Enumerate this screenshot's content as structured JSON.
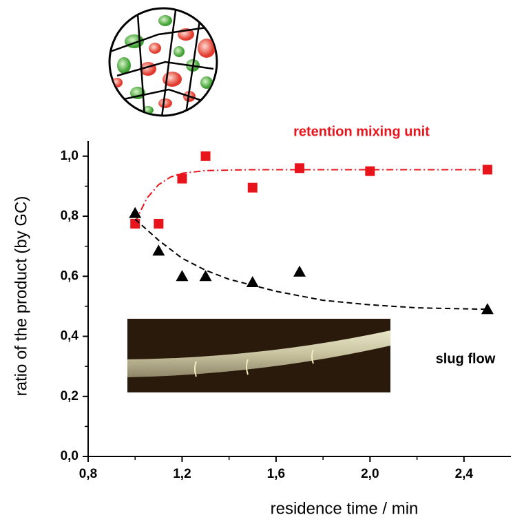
{
  "chart_data": {
    "type": "scatter",
    "x_label": "residence time / min",
    "y_label": "ratio of the product (by GC)",
    "xlim": [
      0.8,
      2.6
    ],
    "ylim": [
      0,
      1.05
    ],
    "xticks": [
      {
        "value": 0.8,
        "label": "0,8"
      },
      {
        "value": 1.2,
        "label": "1,2"
      },
      {
        "value": 1.6,
        "label": "1,6"
      },
      {
        "value": 2.0,
        "label": "2,0"
      },
      {
        "value": 2.4,
        "label": "2,4"
      }
    ],
    "yticks": [
      {
        "value": 0,
        "label": "0,0"
      },
      {
        "value": 0.2,
        "label": "0,2"
      },
      {
        "value": 0.4,
        "label": "0,4"
      },
      {
        "value": 0.6,
        "label": "0,6"
      },
      {
        "value": 0.8,
        "label": "0,8"
      },
      {
        "value": 1.0,
        "label": "1,0"
      }
    ],
    "series": [
      {
        "name": "retention mixing unit",
        "color": "#e8141c",
        "marker": "square",
        "x": [
          1.0,
          1.1,
          1.2,
          1.3,
          1.5,
          1.7,
          2.0,
          2.5
        ],
        "values": [
          0.775,
          0.775,
          0.925,
          1.0,
          0.895,
          0.96,
          0.95,
          0.955
        ],
        "fit": {
          "x": [
            1.0,
            1.05,
            1.1,
            1.15,
            1.2,
            1.3,
            1.5,
            2.0,
            2.5
          ],
          "values": [
            0.78,
            0.86,
            0.905,
            0.93,
            0.943,
            0.952,
            0.955,
            0.955,
            0.955
          ]
        }
      },
      {
        "name": "slug flow",
        "color": "#000000",
        "marker": "triangle",
        "x": [
          1.0,
          1.1,
          1.2,
          1.3,
          1.5,
          1.7,
          2.5
        ],
        "values": [
          0.81,
          0.685,
          0.6,
          0.6,
          0.58,
          0.615,
          0.49
        ],
        "fit": {
          "x": [
            1.0,
            1.1,
            1.2,
            1.3,
            1.4,
            1.6,
            1.8,
            2.0,
            2.2,
            2.5
          ],
          "values": [
            0.79,
            0.72,
            0.66,
            0.62,
            0.59,
            0.55,
            0.52,
            0.505,
            0.495,
            0.49
          ]
        }
      }
    ]
  }
}
